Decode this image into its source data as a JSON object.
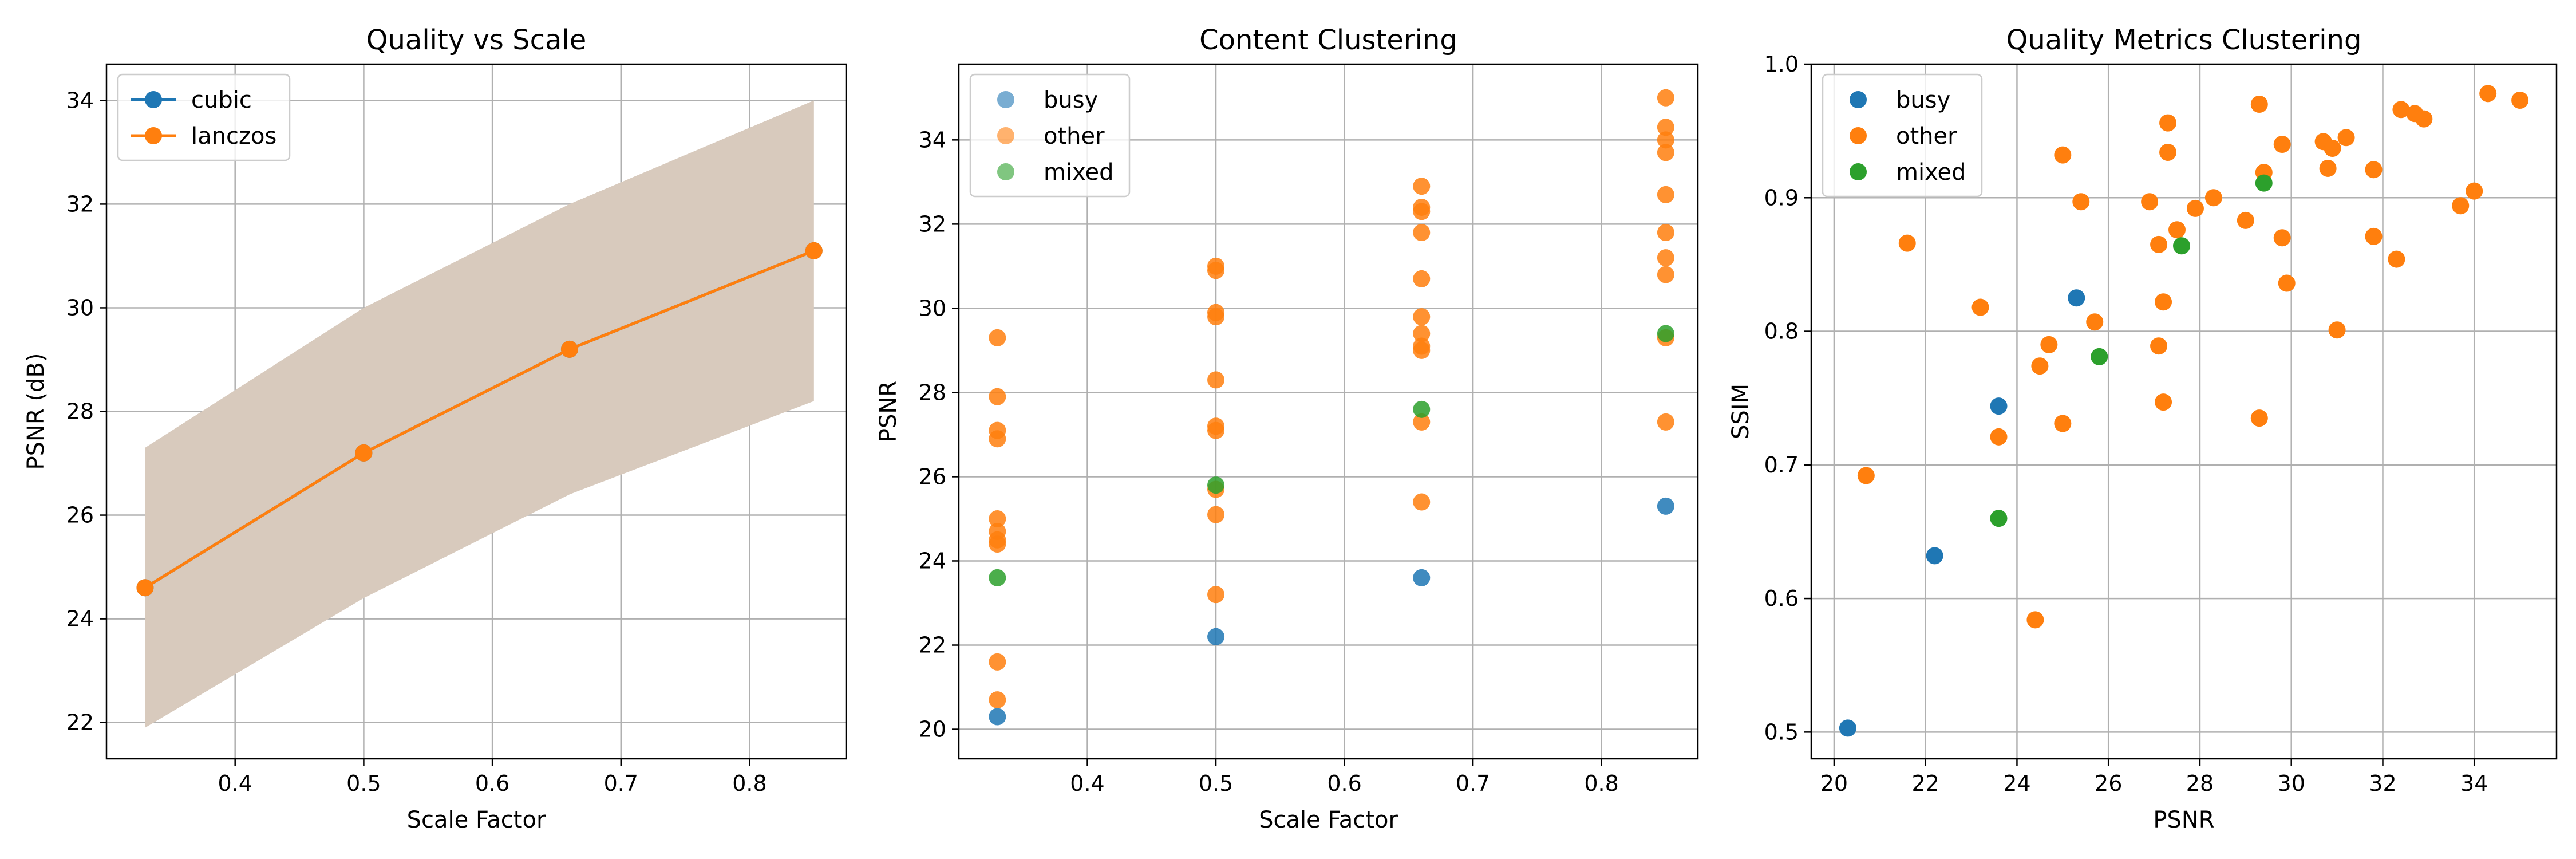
{
  "chart_data": [
    {
      "type": "line",
      "title": "Quality vs Scale",
      "xlabel": "Scale Factor",
      "ylabel": "PSNR (dB)",
      "xlim": [
        0.3,
        0.875
      ],
      "ylim": [
        21.3,
        34.7
      ],
      "xticks": [
        0.4,
        0.5,
        0.6,
        0.7,
        0.8
      ],
      "yticks": [
        22,
        24,
        26,
        28,
        30,
        32,
        34
      ],
      "grid": true,
      "legend": "top-left",
      "band": {
        "x": [
          0.33,
          0.5,
          0.66,
          0.85
        ],
        "lower": [
          21.9,
          24.4,
          26.4,
          28.2
        ],
        "upper": [
          27.3,
          30.0,
          32.0,
          34.0
        ],
        "color": "#d8cabd"
      },
      "series": [
        {
          "name": "cubic",
          "color": "#1f77b4",
          "x": [
            0.33,
            0.5,
            0.66,
            0.85
          ],
          "y": [
            24.6,
            27.2,
            29.2,
            31.1
          ]
        },
        {
          "name": "lanczos",
          "color": "#ff7f0e",
          "x": [
            0.33,
            0.5,
            0.66,
            0.85
          ],
          "y": [
            24.6,
            27.2,
            29.2,
            31.1
          ]
        }
      ]
    },
    {
      "type": "scatter",
      "title": "Content Clustering",
      "xlabel": "Scale Factor",
      "ylabel": "PSNR",
      "xlim": [
        0.3,
        0.875
      ],
      "ylim": [
        19.3,
        35.8
      ],
      "xticks": [
        0.4,
        0.5,
        0.6,
        0.7,
        0.8
      ],
      "yticks": [
        20,
        22,
        24,
        26,
        28,
        30,
        32,
        34
      ],
      "grid": true,
      "legend": "top-left",
      "series": [
        {
          "name": "busy",
          "color": "#1f77b4",
          "points": [
            [
              0.33,
              20.3
            ],
            [
              0.5,
              22.2
            ],
            [
              0.66,
              23.6
            ],
            [
              0.85,
              25.3
            ]
          ]
        },
        {
          "name": "other",
          "color": "#ff7f0e",
          "points": [
            [
              0.33,
              20.7
            ],
            [
              0.33,
              21.6
            ],
            [
              0.33,
              24.4
            ],
            [
              0.33,
              24.5
            ],
            [
              0.33,
              24.7
            ],
            [
              0.33,
              25.0
            ],
            [
              0.33,
              26.9
            ],
            [
              0.33,
              27.1
            ],
            [
              0.33,
              27.9
            ],
            [
              0.33,
              29.3
            ],
            [
              0.5,
              23.2
            ],
            [
              0.5,
              25.1
            ],
            [
              0.5,
              25.7
            ],
            [
              0.5,
              27.1
            ],
            [
              0.5,
              27.2
            ],
            [
              0.5,
              28.3
            ],
            [
              0.5,
              29.8
            ],
            [
              0.5,
              29.9
            ],
            [
              0.5,
              30.9
            ],
            [
              0.5,
              31.0
            ],
            [
              0.66,
              25.4
            ],
            [
              0.66,
              27.3
            ],
            [
              0.66,
              29.0
            ],
            [
              0.66,
              29.1
            ],
            [
              0.66,
              29.4
            ],
            [
              0.66,
              29.8
            ],
            [
              0.66,
              30.7
            ],
            [
              0.66,
              31.8
            ],
            [
              0.66,
              32.3
            ],
            [
              0.66,
              32.4
            ],
            [
              0.66,
              32.9
            ],
            [
              0.85,
              27.3
            ],
            [
              0.85,
              29.3
            ],
            [
              0.85,
              30.8
            ],
            [
              0.85,
              31.2
            ],
            [
              0.85,
              31.8
            ],
            [
              0.85,
              32.7
            ],
            [
              0.85,
              33.7
            ],
            [
              0.85,
              34.0
            ],
            [
              0.85,
              34.3
            ],
            [
              0.85,
              35.0
            ]
          ]
        },
        {
          "name": "mixed",
          "color": "#2ca02c",
          "points": [
            [
              0.33,
              23.6
            ],
            [
              0.5,
              25.8
            ],
            [
              0.66,
              27.6
            ],
            [
              0.85,
              29.4
            ]
          ]
        }
      ]
    },
    {
      "type": "scatter",
      "title": "Quality Metrics Clustering",
      "xlabel": "PSNR",
      "ylabel": "SSIM",
      "xlim": [
        19.5,
        35.8
      ],
      "ylim": [
        0.48,
        1.0
      ],
      "xticks": [
        20,
        22,
        24,
        26,
        28,
        30,
        32,
        34
      ],
      "yticks": [
        0.5,
        0.6,
        0.7,
        0.8,
        0.9,
        1.0
      ],
      "ytick_labels": [
        "0.5",
        "0.6",
        "0.7",
        "0.8",
        "0.9",
        "1.0"
      ],
      "grid": true,
      "legend": "top-left",
      "series": [
        {
          "name": "busy",
          "color": "#1f77b4",
          "points": [
            [
              20.3,
              0.503
            ],
            [
              22.2,
              0.632
            ],
            [
              23.6,
              0.744
            ],
            [
              25.3,
              0.825
            ]
          ]
        },
        {
          "name": "other",
          "color": "#ff7f0e",
          "points": [
            [
              20.7,
              0.692
            ],
            [
              21.6,
              0.866
            ],
            [
              23.2,
              0.818
            ],
            [
              23.6,
              0.721
            ],
            [
              24.4,
              0.584
            ],
            [
              24.5,
              0.774
            ],
            [
              24.7,
              0.79
            ],
            [
              25.0,
              0.731
            ],
            [
              25.0,
              0.932
            ],
            [
              25.4,
              0.897
            ],
            [
              25.7,
              0.807
            ],
            [
              26.9,
              0.897
            ],
            [
              27.1,
              0.789
            ],
            [
              27.1,
              0.865
            ],
            [
              27.2,
              0.822
            ],
            [
              27.2,
              0.747
            ],
            [
              27.3,
              0.956
            ],
            [
              27.3,
              0.934
            ],
            [
              27.5,
              0.876
            ],
            [
              27.9,
              0.892
            ],
            [
              28.3,
              0.9
            ],
            [
              29.0,
              0.883
            ],
            [
              29.3,
              0.735
            ],
            [
              29.3,
              0.97
            ],
            [
              29.4,
              0.919
            ],
            [
              29.8,
              0.94
            ],
            [
              29.8,
              0.87
            ],
            [
              29.9,
              0.836
            ],
            [
              30.7,
              0.942
            ],
            [
              30.8,
              0.922
            ],
            [
              30.9,
              0.937
            ],
            [
              31.0,
              0.801
            ],
            [
              31.2,
              0.945
            ],
            [
              31.8,
              0.871
            ],
            [
              31.8,
              0.921
            ],
            [
              32.3,
              0.854
            ],
            [
              32.4,
              0.966
            ],
            [
              32.7,
              0.963
            ],
            [
              32.9,
              0.959
            ],
            [
              33.7,
              0.894
            ],
            [
              34.0,
              0.905
            ],
            [
              34.3,
              0.978
            ],
            [
              35.0,
              0.973
            ]
          ]
        },
        {
          "name": "mixed",
          "color": "#2ca02c",
          "points": [
            [
              23.6,
              0.66
            ],
            [
              25.8,
              0.781
            ],
            [
              27.6,
              0.864
            ],
            [
              29.4,
              0.911
            ]
          ]
        }
      ]
    }
  ]
}
